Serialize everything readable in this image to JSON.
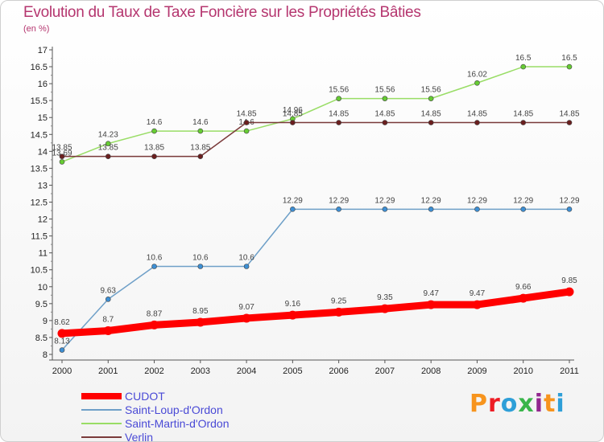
{
  "title": "Evolution du Taux de Taxe Foncière sur les Propriétés Bâties",
  "subtitle": "(en %)",
  "logo": {
    "text": "Proxiti",
    "colors": [
      "#f7941d",
      "#ed1c24",
      "#2e9fd8",
      "#39b54a",
      "#92278f",
      "#f7941d",
      "#2e9fd8"
    ]
  },
  "colors": {
    "title": "#b5366f",
    "legend_text": "#4a4ad6"
  },
  "chart_data": {
    "type": "line",
    "title": "Evolution du Taux de Taxe Foncière sur les Propriétés Bâties",
    "ylabel": "(en %)",
    "xlabel": "",
    "x": [
      "2000",
      "2001",
      "2002",
      "2003",
      "2004",
      "2005",
      "2006",
      "2007",
      "2008",
      "2009",
      "2010",
      "2011"
    ],
    "ylim": [
      8,
      17
    ],
    "yticks": [
      "8",
      "8.5",
      "9",
      "9.5",
      "10",
      "10.5",
      "11",
      "11.5",
      "12",
      "12.5",
      "13",
      "13.5",
      "14",
      "14.5",
      "15",
      "15.5",
      "16",
      "16.5",
      "17"
    ],
    "grid": false,
    "legend_position": "bottom-left",
    "series": [
      {
        "name": "CUDOT",
        "color": "#ff0000",
        "marker": "#ff0000",
        "thick": true,
        "values": [
          8.62,
          8.7,
          8.87,
          8.95,
          9.07,
          9.16,
          9.25,
          9.35,
          9.47,
          9.47,
          9.66,
          9.85
        ],
        "labels": [
          "8.62",
          "8.7",
          "8.87",
          "8.95",
          "9.07",
          "9.16",
          "9.25",
          "9.35",
          "9.47",
          "9.47",
          "9.66",
          "9.85"
        ]
      },
      {
        "name": "Saint-Loup-d'Ordon",
        "color": "#6fa0c8",
        "marker": "#3d8fd4",
        "thick": false,
        "values": [
          8.13,
          9.63,
          10.6,
          10.6,
          10.6,
          12.29,
          12.29,
          12.29,
          12.29,
          12.29,
          12.29,
          12.29
        ],
        "labels": [
          "8.13",
          "9.63",
          "10.6",
          "10.6",
          "10.6",
          "12.29",
          "12.29",
          "12.29",
          "12.29",
          "12.29",
          "12.29",
          "12.29"
        ]
      },
      {
        "name": "Saint-Martin-d'Ordon",
        "color": "#99dd66",
        "marker": "#66cc33",
        "thick": false,
        "values": [
          13.69,
          14.23,
          14.6,
          14.6,
          14.6,
          14.96,
          15.56,
          15.56,
          15.56,
          16.02,
          16.5,
          16.5
        ],
        "labels": [
          "13.69",
          "14.23",
          "14.6",
          "14.6",
          "14.6",
          "14.96",
          "15.56",
          "15.56",
          "15.56",
          "16.02",
          "16.5",
          "16.5"
        ]
      },
      {
        "name": "Verlin",
        "color": "#7a3a3a",
        "marker": "#6b1f1f",
        "thick": false,
        "values": [
          13.85,
          13.85,
          13.85,
          13.85,
          14.85,
          14.85,
          14.85,
          14.85,
          14.85,
          14.85,
          14.85,
          14.85
        ],
        "labels": [
          "13.85",
          "13.85",
          "13.85",
          "13.85",
          "14.85",
          "14.85",
          "14.85",
          "14.85",
          "14.85",
          "14.85",
          "14.85",
          "14.85"
        ]
      }
    ]
  }
}
